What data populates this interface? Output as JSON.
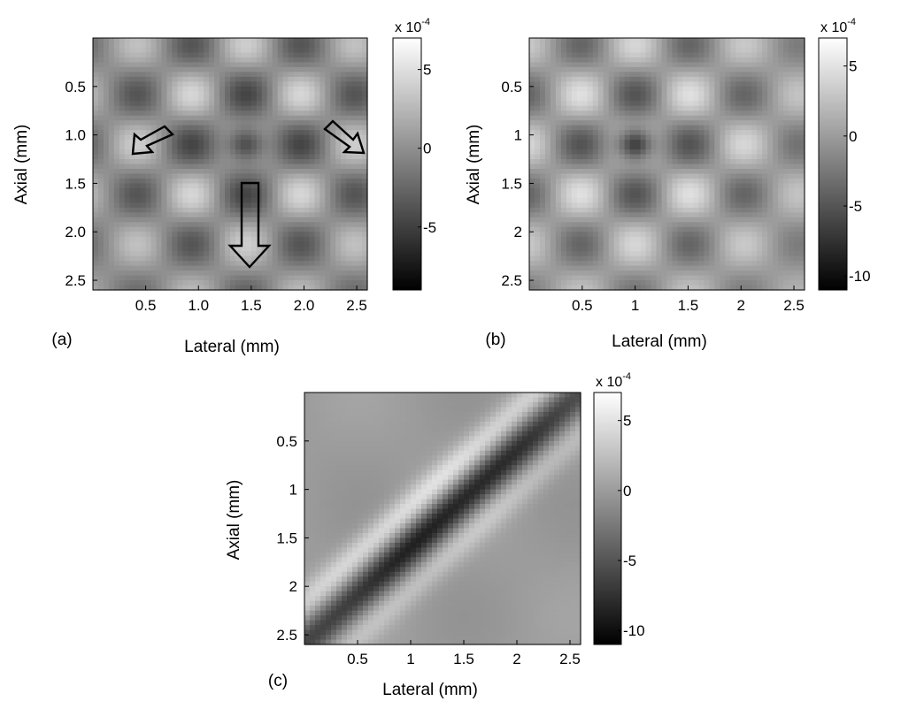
{
  "chart_data": [
    {
      "id": "a",
      "type": "heatmap",
      "panel_label": "(a)",
      "xlabel": "Lateral (mm)",
      "ylabel": "Axial (mm)",
      "xlim": [
        0,
        2.6
      ],
      "ylim": [
        2.6,
        0
      ],
      "xticks": [
        0.5,
        1.0,
        1.5,
        2.0,
        2.5
      ],
      "xtick_labels": [
        "0.5",
        "1.0",
        "1.5",
        "2.0",
        "2.5"
      ],
      "yticks": [
        0.5,
        1.0,
        1.5,
        2.0,
        2.5
      ],
      "ytick_labels": [
        "0.5",
        "1.0",
        "1.5",
        "2.0",
        "2.5"
      ],
      "colormap": "gray",
      "colorbar": {
        "multiplier": "x 10",
        "multiplier_exp": "-4",
        "range": [
          -9,
          7
        ],
        "ticks": [
          5,
          0,
          -5
        ],
        "tick_labels": [
          "5",
          "0",
          "-5"
        ]
      },
      "pattern": "x-shaped crossing bands centered at (1.45, 1.1) mm with dark center",
      "annotations": [
        "arrow-upper-left",
        "arrow-upper-right",
        "arrow-down-center"
      ]
    },
    {
      "id": "b",
      "type": "heatmap",
      "panel_label": "(b)",
      "xlabel": "Lateral (mm)",
      "ylabel": "Axial (mm)",
      "xlim": [
        0,
        2.6
      ],
      "ylim": [
        2.6,
        0
      ],
      "xticks": [
        0.5,
        1,
        1.5,
        2,
        2.5
      ],
      "xtick_labels": [
        "0.5",
        "1",
        "1.5",
        "2",
        "2.5"
      ],
      "yticks": [
        0.5,
        1,
        1.5,
        2,
        2.5
      ],
      "ytick_labels": [
        "0.5",
        "1",
        "1.5",
        "2",
        "2.5"
      ],
      "colormap": "gray",
      "colorbar": {
        "multiplier": "x 10",
        "multiplier_exp": "-4",
        "range": [
          -11,
          7
        ],
        "ticks": [
          5,
          0,
          -5,
          -10
        ],
        "tick_labels": [
          "5",
          "0",
          "-5",
          "-10"
        ]
      },
      "pattern": "x-shaped crossing bands centered at (1.0, 1.1) mm with dark center"
    },
    {
      "id": "c",
      "type": "heatmap",
      "panel_label": "(c)",
      "xlabel": "Lateral (mm)",
      "ylabel": "Axial (mm)",
      "xlim": [
        0,
        2.6
      ],
      "ylim": [
        2.6,
        0
      ],
      "xticks": [
        0.5,
        1,
        1.5,
        2,
        2.5
      ],
      "xtick_labels": [
        "0.5",
        "1",
        "1.5",
        "2",
        "2.5"
      ],
      "yticks": [
        0.5,
        1,
        1.5,
        2,
        2.5
      ],
      "ytick_labels": [
        "0.5",
        "1",
        "1.5",
        "2",
        "2.5"
      ],
      "colormap": "gray",
      "colorbar": {
        "multiplier": "x 10",
        "multiplier_exp": "-4",
        "range": [
          -11,
          7
        ],
        "ticks": [
          5,
          0,
          -5,
          -10
        ],
        "tick_labels": [
          "5",
          "0",
          "-5",
          "-10"
        ]
      },
      "pattern": "single diagonal dark band from lower-left to upper-right flanked by bright bands"
    }
  ]
}
